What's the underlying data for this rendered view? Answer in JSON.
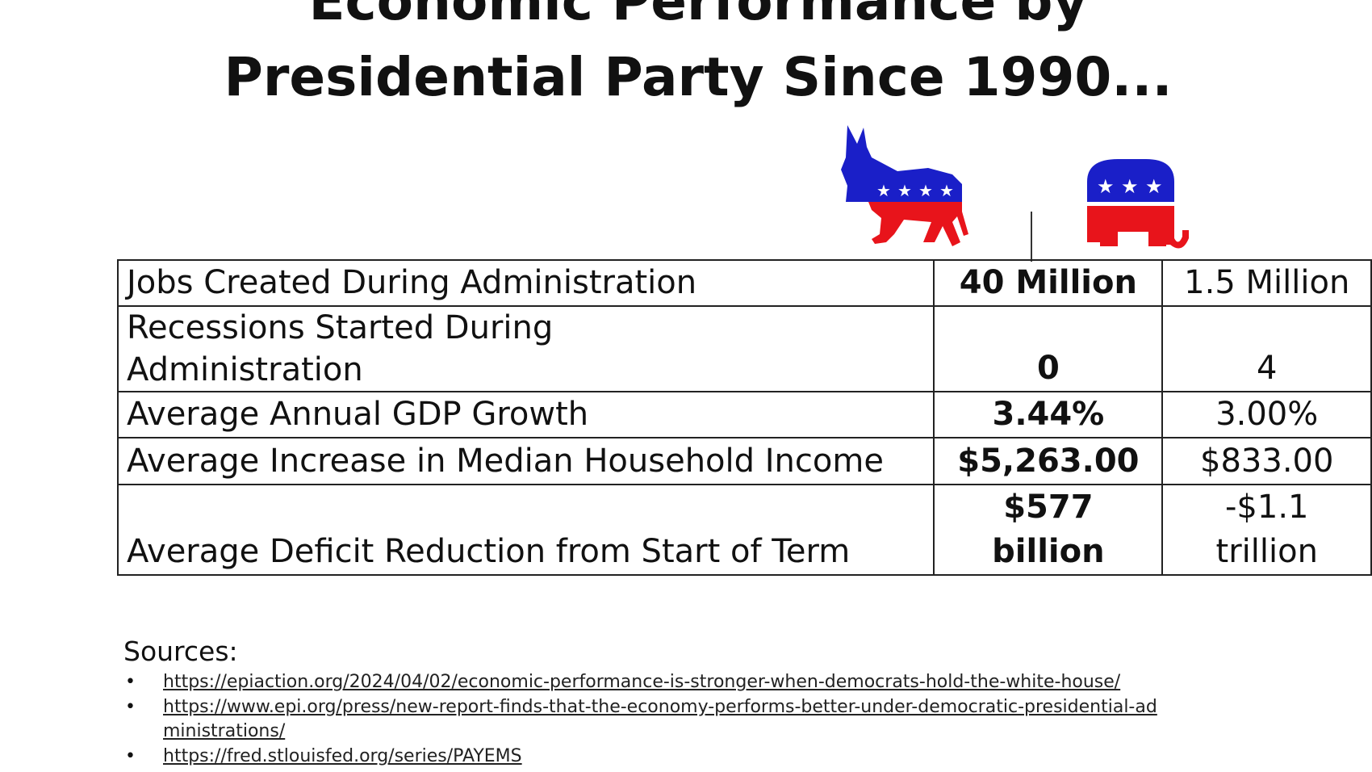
{
  "title": {
    "line1": "Economic Performance by",
    "line2": "Presidential Party Since 1990..."
  },
  "logos": {
    "democratic": "democratic-donkey-logo",
    "republican": "republican-elephant-logo",
    "blue": "#1a1fc8",
    "red": "#e8141b"
  },
  "table": {
    "rows": [
      {
        "label": "Jobs Created During Administration",
        "dem": "40 Million",
        "rep": "1.5 Million"
      },
      {
        "label": "Recessions Started During Administration",
        "dem": "0",
        "rep": "4"
      },
      {
        "label": "Average Annual GDP Growth",
        "dem": "3.44%",
        "rep": "3.00%"
      },
      {
        "label": "Average Increase in Median Household Income",
        "dem": "$5,263.00",
        "rep": "$833.00"
      },
      {
        "label": "Average Deficit Reduction from Start of Term",
        "dem": "$577 billion",
        "rep": "-$1.1 trillion"
      }
    ]
  },
  "sources": {
    "label": "Sources:",
    "links": [
      "https://epiaction.org/2024/04/02/economic-performance-is-stronger-when-democrats-hold-the-white-house/",
      "https://www.epi.org/press/new-report-finds-that-the-economy-performs-better-under-democratic-presidential-administrations/",
      "https://fred.stlouisfed.org/series/PAYEMS"
    ]
  }
}
